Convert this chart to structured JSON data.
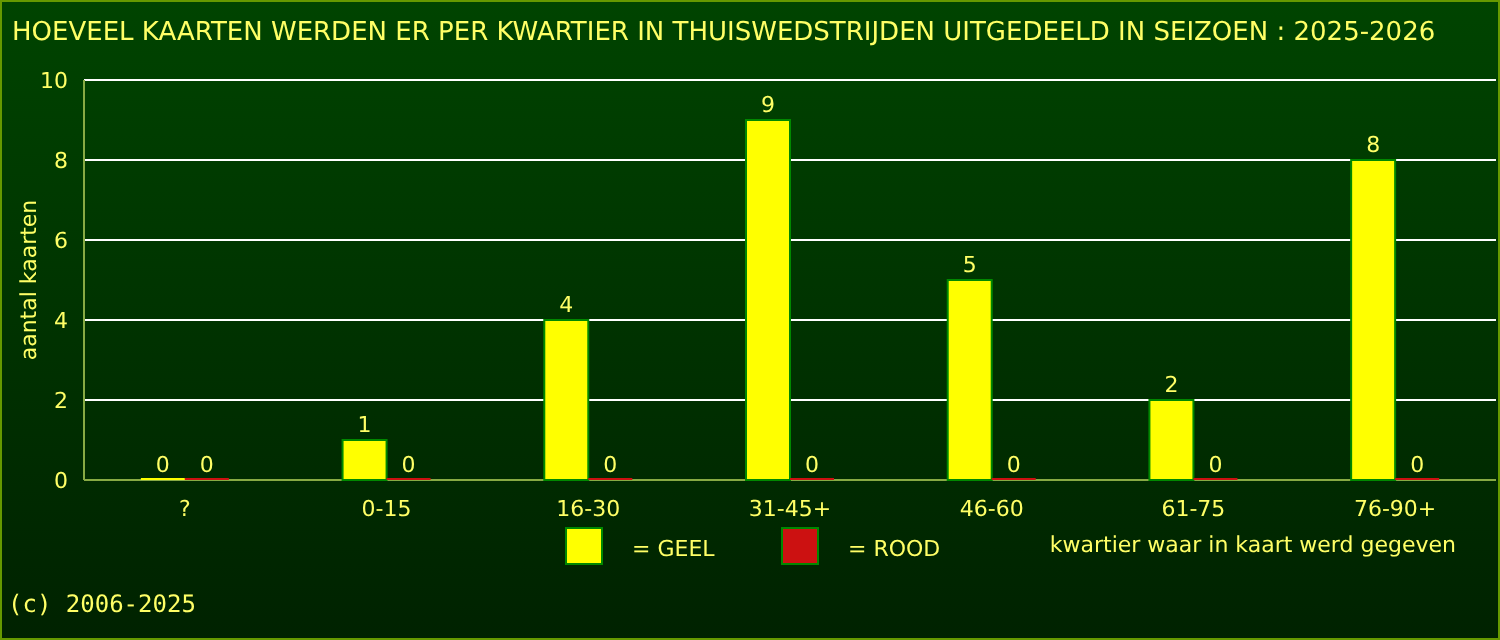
{
  "chart_data": {
    "type": "bar",
    "title": "HOEVEEL KAARTEN WERDEN ER PER KWARTIER IN THUISWEDSTRIJDEN UITGEDEELD IN SEIZOEN : 2025-2026",
    "xlabel": "kwartier waar in kaart werd gegeven",
    "ylabel": "aantal kaarten",
    "categories": [
      "?",
      "0-15",
      "16-30",
      "31-45+",
      "46-60",
      "61-75",
      "76-90+"
    ],
    "series": [
      {
        "name": "= GEEL",
        "color": "#ffff00",
        "values": [
          0,
          1,
          4,
          9,
          5,
          2,
          8
        ]
      },
      {
        "name": "= ROOD",
        "color": "#cc1111",
        "values": [
          0,
          0,
          0,
          0,
          0,
          0,
          0
        ]
      }
    ],
    "ylim": [
      0,
      10
    ],
    "yticks": [
      0,
      2,
      4,
      6,
      8,
      10
    ],
    "grid": "y",
    "legend": "bottom",
    "data_labels": true,
    "annotations": [
      "(c) 2006-2025"
    ]
  }
}
